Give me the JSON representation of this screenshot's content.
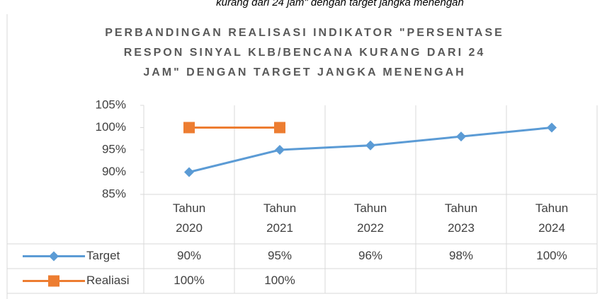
{
  "caption": "kurang dari 24 jam\" dengan target jangka menengah",
  "chart_data": {
    "type": "line",
    "title": [
      "PERBANDINGAN REALISASI INDIKATOR \"PERSENTASE",
      "RESPON SINYAL KLB/BENCANA  KURANG DARI 24",
      "JAM\" DENGAN TARGET JANGKA MENENGAH"
    ],
    "categories": [
      "Tahun 2020",
      "Tahun 2021",
      "Tahun 2022",
      "Tahun 2023",
      "Tahun 2024"
    ],
    "series": [
      {
        "name": "Target",
        "color": "#5b9bd5",
        "marker": "diamond",
        "values": [
          90,
          95,
          96,
          98,
          100
        ],
        "value_labels": [
          "90%",
          "95%",
          "96%",
          "98%",
          "100%"
        ]
      },
      {
        "name": "Realiasi",
        "color": "#ed7d31",
        "marker": "square",
        "values": [
          100,
          100,
          null,
          null,
          null
        ],
        "value_labels": [
          "100%",
          "100%",
          null,
          null,
          null
        ]
      }
    ],
    "ylim": [
      85,
      105
    ],
    "yticks": [
      {
        "value": 85,
        "label": "85%"
      },
      {
        "value": 90,
        "label": "90%"
      },
      {
        "value": 95,
        "label": "95%"
      },
      {
        "value": 100,
        "label": "100%"
      },
      {
        "value": 105,
        "label": "105%"
      }
    ],
    "data_table": true
  }
}
